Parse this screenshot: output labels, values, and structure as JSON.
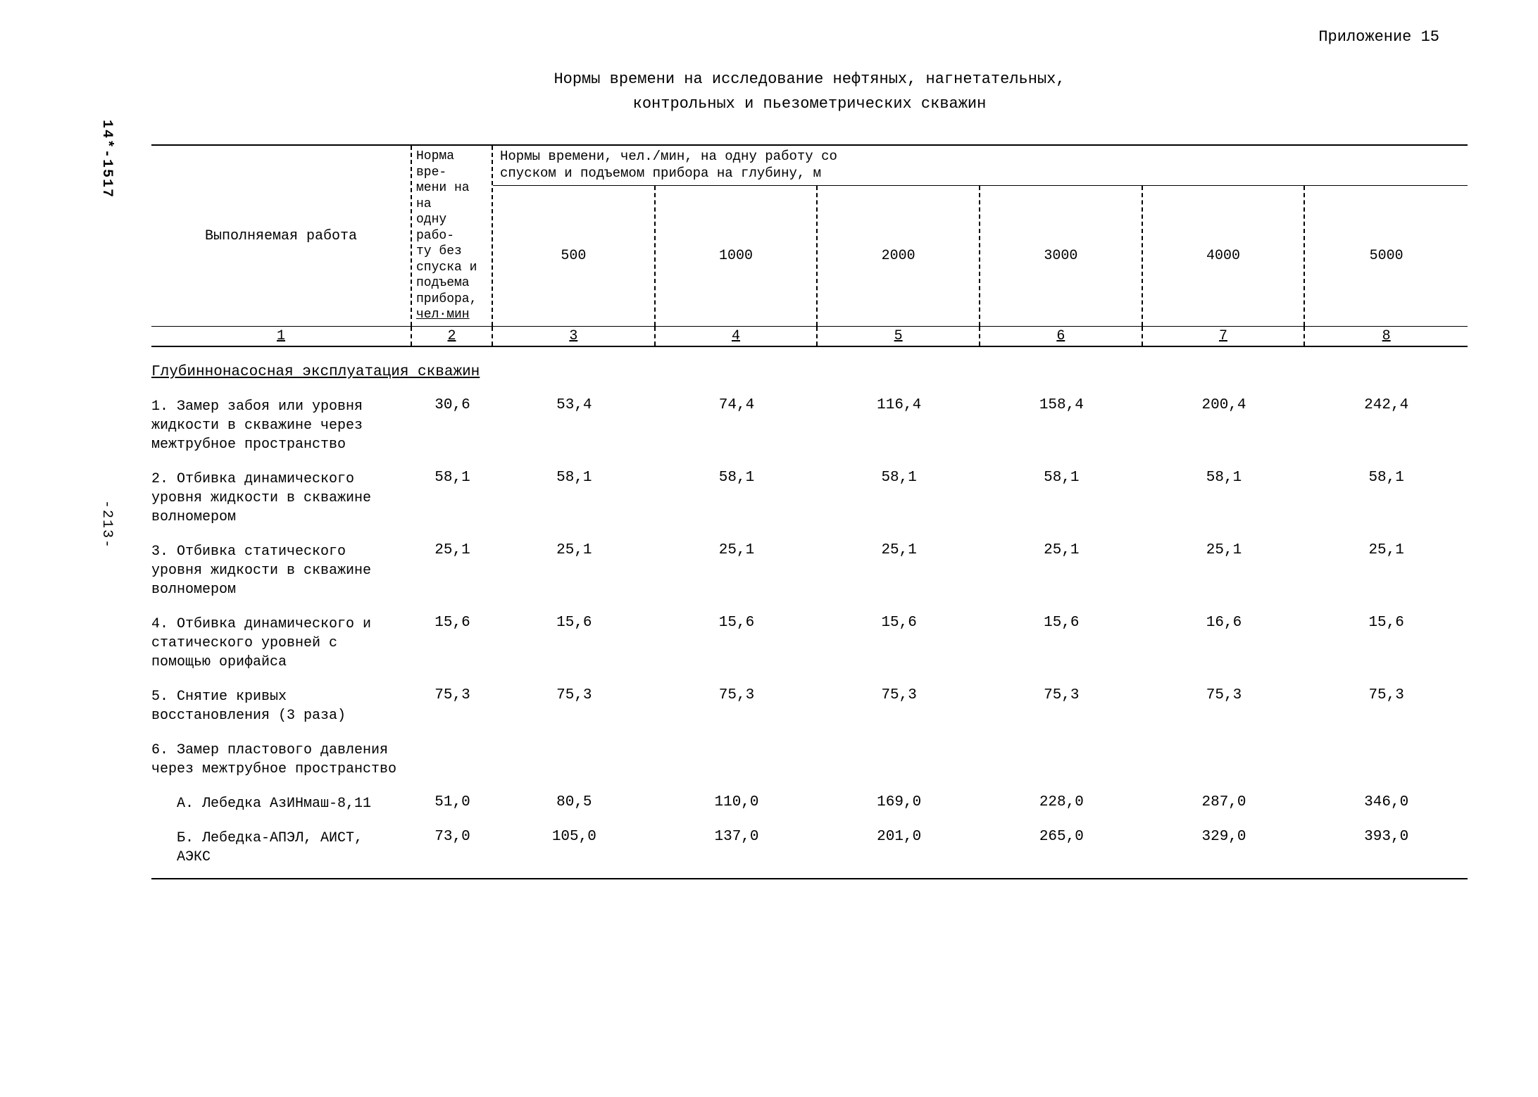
{
  "side_labels": {
    "top": "14*-1517",
    "mid": "-213-"
  },
  "appendix": "Приложение 15",
  "title_line1": "Нормы времени на исследование нефтяных, нагнетательных,",
  "title_line2": "контрольных и пьезометрических скважин",
  "header": {
    "work_col": "Выполняемая работа",
    "norm_col_a": "Норма вре-",
    "norm_col_b": "мени на на",
    "norm_col_c": "одну рабо-",
    "norm_col_d": "ту без",
    "norm_col_e": "спуска и",
    "norm_col_f": "подъема",
    "norm_col_g": "прибора,",
    "norm_col_h": "чел·мин",
    "right_top_a": "Нормы времени, чел./мин,  на одну работу со",
    "right_top_b": "спуском и подъемом прибора на глубину, м",
    "depths": [
      "500",
      "1000",
      "2000",
      "3000",
      "4000",
      "5000"
    ]
  },
  "index_row": [
    "1",
    "2",
    "3",
    "4",
    "5",
    "6",
    "7",
    "8"
  ],
  "section": "Глубиннонасосная эксплуатация  скважин",
  "rows": [
    {
      "desc": "1. Замер забоя или уровня жидкости в скважине через межтрубное пространство",
      "vals": [
        "30,6",
        "53,4",
        "74,4",
        "116,4",
        "158,4",
        "200,4",
        "242,4"
      ]
    },
    {
      "desc": "2. Отбивка динамического уровня жидкости в скважине волномером",
      "vals": [
        "58,1",
        "58,1",
        "58,1",
        "58,1",
        "58,1",
        "58,1",
        "58,1"
      ]
    },
    {
      "desc": "3. Отбивка статического уровня жидкости в скважине волномером",
      "vals": [
        "25,1",
        "25,1",
        "25,1",
        "25,1",
        "25,1",
        "25,1",
        "25,1"
      ]
    },
    {
      "desc": "4. Отбивка динамического и статического уровней с помощью орифайса",
      "vals": [
        "15,6",
        "15,6",
        "15,6",
        "15,6",
        "15,6",
        "16,6",
        "15,6"
      ]
    },
    {
      "desc": "5. Снятие кривых восстановления (3 раза)",
      "vals": [
        "75,3",
        "75,3",
        "75,3",
        "75,3",
        "75,3",
        "75,3",
        "75,3"
      ]
    },
    {
      "desc": "6. Замер пластового давления через межтрубное пространство",
      "vals": [
        "",
        "",
        "",
        "",
        "",
        "",
        ""
      ]
    },
    {
      "desc": "А. Лебедка АзИНмаш-8,11",
      "sub": true,
      "vals": [
        "51,0",
        "80,5",
        "110,0",
        "169,0",
        "228,0",
        "287,0",
        "346,0"
      ]
    },
    {
      "desc": "Б. Лебедка-АПЭЛ, АИСТ, АЭКС",
      "sub": true,
      "vals": [
        "73,0",
        "105,0",
        "137,0",
        "201,0",
        "265,0",
        "329,0",
        "393,0"
      ]
    }
  ],
  "colors": {
    "text": "#000000",
    "bg": "#ffffff"
  },
  "typography": {
    "family": "Courier New, monospace",
    "body_pt": 18,
    "title_pt": 22
  }
}
